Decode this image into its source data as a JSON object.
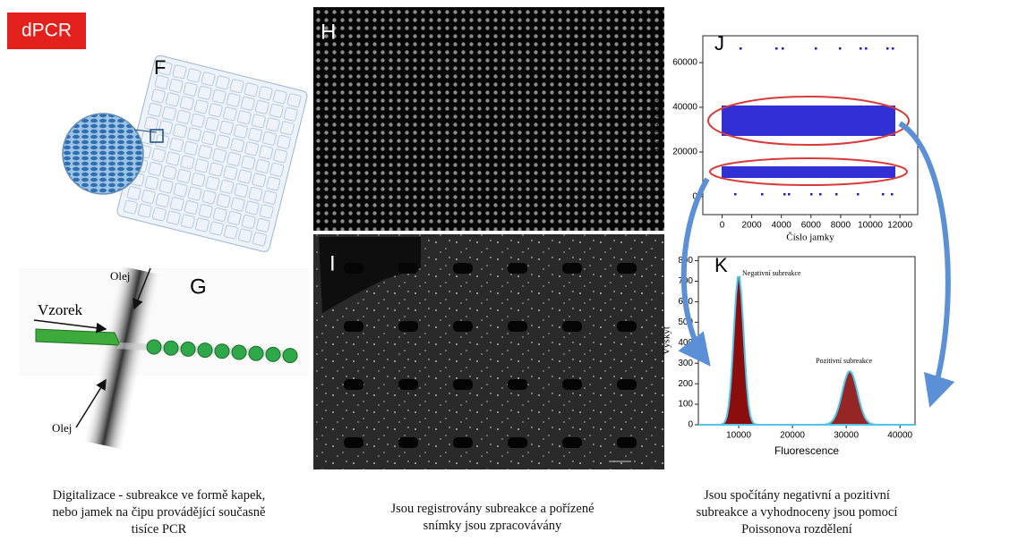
{
  "badge": "dPCR",
  "panels": {
    "f": "F",
    "g": "G",
    "h": "H",
    "i": "I",
    "j": "J",
    "k": "K"
  },
  "diagram_g": {
    "oil_top": "Olej",
    "sample": "Vzorek",
    "oil_bottom": "Olej"
  },
  "chart_j": {
    "ylabel": "Fluorescence",
    "xlabel": "Číslo jamky",
    "xlim": [
      -1300,
      13200
    ],
    "ylim": [
      -8000,
      72000
    ],
    "xticks": [
      0,
      2000,
      4000,
      6000,
      8000,
      10000,
      12000
    ],
    "yticks": [
      0,
      20000,
      40000,
      60000
    ]
  },
  "chart_k": {
    "ylabel": "Výskyt",
    "xlabel": "Fluorescence",
    "xlim": [
      2500,
      42800
    ],
    "ylim": [
      0,
      820
    ],
    "xticks": [
      10000,
      20000,
      30000,
      40000
    ],
    "yticks": [
      0,
      100,
      200,
      300,
      400,
      500,
      600,
      700,
      800
    ],
    "annotations": [
      "Negativní subreakce",
      "Pozitivní subreakce"
    ]
  },
  "captions": [
    [
      "Digitalizace - subreakce ve formě kapek,",
      "nebo jamek na čipu provádějící současně",
      "tisíce PCR"
    ],
    [
      "Jsou registrovány subreakce a pořízené",
      "snímky jsou zpracovávány"
    ],
    [
      "Jsou spočítány negativní a pozitivní",
      "subreakce a vyhodnoceny jsou pomocí",
      "Poissonova rozdělení"
    ]
  ]
}
